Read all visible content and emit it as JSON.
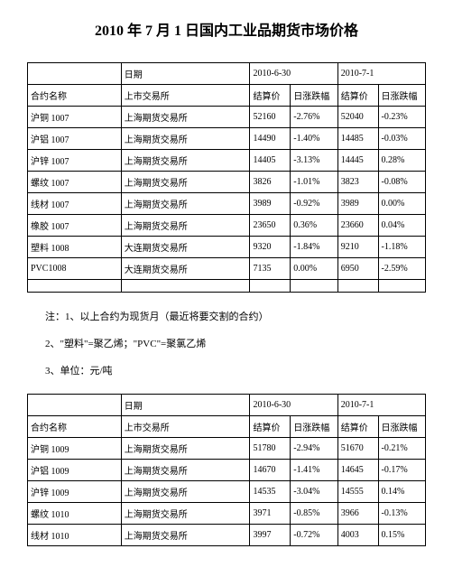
{
  "title": "2010 年 7 月 1 日国内工业品期货市场价格",
  "table1": {
    "header_row1": {
      "date_label": "日期",
      "date1": "2010-6-30",
      "date2": "2010-7-1"
    },
    "header_row2": {
      "contract": "合约名称",
      "exchange": "上市交易所",
      "settle1": "结算价",
      "change1": "日涨跌幅",
      "settle2": "结算价",
      "change2": "日涨跌幅"
    },
    "rows": [
      {
        "contract": "沪铜 1007",
        "exchange": "上海期货交易所",
        "settle1": "52160",
        "change1": "-2.76%",
        "settle2": "52040",
        "change2": "-0.23%"
      },
      {
        "contract": "沪铝 1007",
        "exchange": "上海期货交易所",
        "settle1": "14490",
        "change1": "-1.40%",
        "settle2": "14485",
        "change2": "-0.03%"
      },
      {
        "contract": "沪锌 1007",
        "exchange": "上海期货交易所",
        "settle1": "14405",
        "change1": "-3.13%",
        "settle2": "14445",
        "change2": "0.28%"
      },
      {
        "contract": "螺纹 1007",
        "exchange": "上海期货交易所",
        "settle1": "3826",
        "change1": "-1.01%",
        "settle2": "3823",
        "change2": "-0.08%"
      },
      {
        "contract": "线材 1007",
        "exchange": "上海期货交易所",
        "settle1": "3989",
        "change1": "-0.92%",
        "settle2": "3989",
        "change2": "0.00%"
      },
      {
        "contract": "橡胶 1007",
        "exchange": "上海期货交易所",
        "settle1": "23650",
        "change1": "0.36%",
        "settle2": "23660",
        "change2": "0.04%"
      },
      {
        "contract": "塑料 1008",
        "exchange": "大连期货交易所",
        "settle1": "9320",
        "change1": "-1.84%",
        "settle2": "9210",
        "change2": "-1.18%"
      },
      {
        "contract": "PVC1008",
        "exchange": "大连期货交易所",
        "settle1": "7135",
        "change1": "0.00%",
        "settle2": "6950",
        "change2": "-2.59%"
      }
    ]
  },
  "notes": {
    "note1": "注：1、以上合约为现货月（最近将要交割的合约）",
    "note2": "2、\"塑料\"=聚乙烯；\"PVC\"=聚氯乙烯",
    "note3": "3、单位：元/吨"
  },
  "table2": {
    "header_row1": {
      "date_label": "日期",
      "date1": "2010-6-30",
      "date2": "2010-7-1"
    },
    "header_row2": {
      "contract": "合约名称",
      "exchange": "上市交易所",
      "settle1": "结算价",
      "change1": "日涨跌幅",
      "settle2": "结算价",
      "change2": "日涨跌幅"
    },
    "rows": [
      {
        "contract": "沪铜 1009",
        "exchange": "上海期货交易所",
        "settle1": "51780",
        "change1": "-2.94%",
        "settle2": "51670",
        "change2": "-0.21%"
      },
      {
        "contract": "沪铝 1009",
        "exchange": "上海期货交易所",
        "settle1": "14670",
        "change1": "-1.41%",
        "settle2": "14645",
        "change2": "-0.17%"
      },
      {
        "contract": "沪锌 1009",
        "exchange": "上海期货交易所",
        "settle1": "14535",
        "change1": "-3.04%",
        "settle2": "14555",
        "change2": "0.14%"
      },
      {
        "contract": "螺纹 1010",
        "exchange": "上海期货交易所",
        "settle1": "3971",
        "change1": "-0.85%",
        "settle2": "3966",
        "change2": "-0.13%"
      },
      {
        "contract": "线材 1010",
        "exchange": "上海期货交易所",
        "settle1": "3997",
        "change1": "-0.72%",
        "settle2": "4003",
        "change2": "0.15%"
      }
    ]
  },
  "colors": {
    "background": "#ffffff",
    "text": "#000000",
    "border": "#000000"
  },
  "typography": {
    "title_fontsize": 16,
    "body_fontsize": 10,
    "notes_fontsize": 11,
    "font_family": "SimSun"
  }
}
